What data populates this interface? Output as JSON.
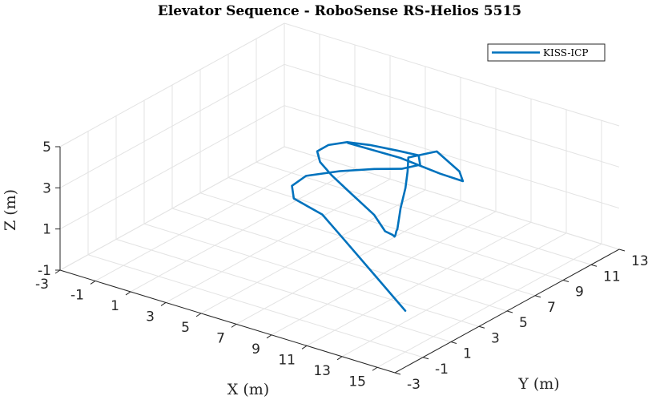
{
  "chart_data": {
    "type": "line3d",
    "title": "Elevator Sequence - RoboSense RS-Helios 5515",
    "xlabel": "X (m)",
    "ylabel": "Y (m)",
    "zlabel": "Z (m)",
    "xlim": [
      -3,
      16
    ],
    "ylim": [
      -3,
      13
    ],
    "zlim": [
      -1,
      5
    ],
    "xticks": [
      -3,
      -1,
      1,
      3,
      5,
      7,
      9,
      11,
      13,
      15
    ],
    "xtick_labels": [
      "-3",
      "-1",
      "1",
      "3",
      "5",
      "7",
      "9",
      "11",
      "13",
      "15"
    ],
    "yticks": [
      -3,
      -1,
      1,
      3,
      5,
      7,
      9,
      11,
      13
    ],
    "ytick_labels": [
      "-3",
      "-1",
      "1",
      "3",
      "5",
      "7",
      "9",
      "11",
      "13"
    ],
    "zticks": [
      -1,
      1,
      3,
      5
    ],
    "ztick_labels": [
      "-1",
      "1",
      "3",
      "5"
    ],
    "grid": true,
    "legend_position": "top-right",
    "series": [
      {
        "name": "KISS-ICP",
        "color": "#0072BD",
        "x": [
          15.0,
          11.5,
          8.0,
          5.6,
          3.5,
          3.0,
          3.4,
          5.0,
          6.8,
          8.2,
          9.0,
          8.6,
          7.3,
          5.6,
          4.3,
          3.4,
          3.0,
          3.4,
          4.3,
          5.6,
          7.5,
          9.0,
          9.5,
          9.7,
          9.6,
          9.4,
          9.3,
          9.4,
          9.6,
          9.8,
          10.0,
          10.5,
          10.2,
          9.2,
          7.2,
          4.7,
          1.8
        ],
        "y": [
          -1.0,
          1.2,
          3.4,
          4.9,
          5.5,
          6.0,
          6.5,
          6.9,
          7.1,
          7.3,
          7.6,
          8.0,
          8.2,
          8.3,
          8.3,
          8.1,
          7.8,
          7.5,
          7.2,
          6.8,
          6.2,
          5.1,
          5.0,
          4.9,
          5.1,
          5.4,
          5.6,
          5.7,
          5.8,
          5.7,
          5.5,
          6.9,
          8.9,
          10.4,
          11.3,
          11.6,
          11.5
        ],
        "z": [
          1.0,
          1.0,
          1.0,
          1.0,
          1.0,
          1.3,
          1.7,
          2.2,
          2.7,
          3.0,
          3.3,
          3.5,
          3.3,
          3.1,
          2.9,
          2.6,
          2.3,
          2.0,
          1.7,
          1.4,
          1.0,
          1.0,
          1.0,
          1.0,
          1.0,
          1.0,
          1.0,
          2.0,
          3.0,
          3.9,
          4.7,
          4.6,
          2.8,
          1.5,
          1.0,
          1.0,
          1.0
        ]
      }
    ]
  }
}
